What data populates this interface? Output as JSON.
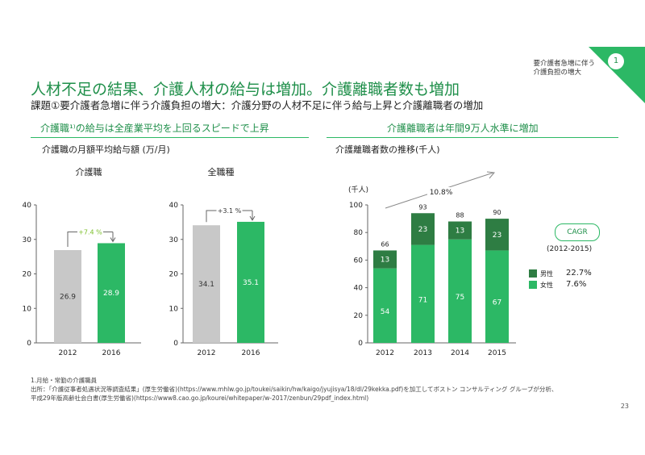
{
  "header": {
    "title": "人材不足の結果、介護人材の給与は増加。介護離職者数も増加",
    "subtitle": "課題①要介護者急増に伴う介護負担の増大：介護分野の人材不足に伴う給与上昇と介護離職者の増加",
    "corner_tag_line1": "要介護者急増に伴う",
    "corner_tag_line2": "介護負担の増大",
    "page_badge": "1"
  },
  "left_panel": {
    "heading": "介護職¹⁾の給与は全産業平均を上回るスピードで上昇",
    "subheading": "介護職の月額平均給与額 (万/月)"
  },
  "right_panel": {
    "heading": "介護離職者は年間9万人水準に増加",
    "subheading": "介護離職者数の推移(千人)"
  },
  "colors": {
    "green_dark": "#1f8f4a",
    "green_bar": "#2cb865",
    "green_male": "#2e7d43",
    "gray_bar": "#c8c8c8"
  },
  "chart_data": [
    {
      "type": "bar",
      "title": "介護職",
      "categories": [
        "2012",
        "2016"
      ],
      "values": [
        26.9,
        28.9
      ],
      "ylim": [
        0,
        40
      ],
      "yticks": [
        0,
        10,
        20,
        30,
        40
      ],
      "growth_label": "+7.4 %"
    },
    {
      "type": "bar",
      "title": "全職種",
      "categories": [
        "2012",
        "2016"
      ],
      "values": [
        34.1,
        35.1
      ],
      "ylim": [
        0,
        40
      ],
      "yticks": [
        0,
        10,
        20,
        30,
        40
      ],
      "growth_label": "+3.1 %"
    },
    {
      "type": "bar",
      "stacked": true,
      "unit_label": "(千人)",
      "categories": [
        "2012",
        "2013",
        "2014",
        "2015"
      ],
      "series": [
        {
          "name": "女性",
          "values": [
            54,
            71,
            75,
            67
          ]
        },
        {
          "name": "男性",
          "values": [
            13,
            23,
            13,
            23
          ]
        }
      ],
      "totals": [
        66,
        93,
        88,
        90
      ],
      "ylim": [
        0,
        100
      ],
      "yticks": [
        0,
        20,
        40,
        60,
        80,
        100
      ],
      "trend_label": "10.8%",
      "cagr_title": "CAGR",
      "cagr_period": "(2012-2015)",
      "cagr_values": {
        "男性": "22.7%",
        "女性": "7.6%"
      }
    }
  ],
  "footnotes": {
    "note1": "1.月給・常勤の介護職員",
    "note2": "出所：「介護従事者処遇状況等調査結果」(厚生労働省)(https://www.mhlw.go.jp/toukei/saikin/hw/kaigo/jyujisya/18/dl/29kekka.pdf)を加工してボストン コンサルティング グループが分析、",
    "note3": "平成29年版高齢社会白書(厚生労働省)(https://www8.cao.go.jp/kourei/whitepaper/w-2017/zenbun/29pdf_index.html)"
  },
  "page_number": "23"
}
